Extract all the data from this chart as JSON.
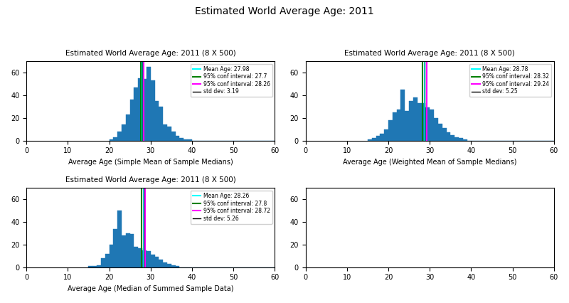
{
  "title": "Estimated World Average Age: 2011",
  "bar_color": "#1f77b4",
  "xlim": [
    0,
    60
  ],
  "ylim": [
    0,
    70
  ],
  "xticks": [
    0,
    10,
    20,
    30,
    40,
    50,
    60
  ],
  "plot1": {
    "title": "Estimated World Average Age: 2011 (8 X 500)",
    "xlabel": "Average Age (Simple Mean of Sample Medians)",
    "mean": 27.98,
    "ci_low": 27.7,
    "ci_high": 28.26,
    "std_dev": 3.19,
    "bin_start": 20,
    "bin_width": 1,
    "counts": [
      1,
      3,
      8,
      14,
      23,
      36,
      47,
      55,
      54,
      65,
      53,
      35,
      30,
      14,
      12,
      8,
      4,
      2,
      1,
      1,
      0,
      0,
      0,
      0,
      0,
      0,
      0,
      0,
      0,
      0,
      0,
      0,
      0,
      0,
      0,
      0,
      0,
      0,
      0,
      0
    ]
  },
  "plot2": {
    "title": "Estimated World Average Age: 2011 (8 X 500)",
    "xlabel": "Average Age (Weighted Mean of Sample Medians)",
    "mean": 28.78,
    "ci_low": 28.32,
    "ci_high": 29.24,
    "std_dev": 5.25,
    "bin_start": 15,
    "bin_width": 1,
    "counts": [
      1,
      2,
      4,
      6,
      10,
      18,
      25,
      27,
      45,
      26,
      35,
      38,
      33,
      33,
      29,
      27,
      20,
      15,
      11,
      7,
      5,
      3,
      2,
      1,
      0,
      0,
      0,
      0,
      0,
      0,
      0,
      0,
      0,
      0,
      0,
      0,
      0,
      0,
      0,
      0,
      0,
      0,
      0,
      0,
      0
    ]
  },
  "plot3": {
    "title": "Estimated World Average Age: 2011 (8 X 500)",
    "xlabel": "Average Age (Median of Summed Sample Data)",
    "mean": 28.26,
    "ci_low": 27.8,
    "ci_high": 28.72,
    "std_dev": 5.26,
    "bin_start": 15,
    "bin_width": 1,
    "counts": [
      1,
      1,
      2,
      8,
      12,
      20,
      34,
      50,
      28,
      30,
      29,
      18,
      17,
      15,
      14,
      11,
      9,
      7,
      4,
      3,
      2,
      1,
      0,
      0,
      0,
      0,
      0,
      0,
      0,
      0,
      0,
      0,
      0,
      0,
      0,
      0,
      0,
      0,
      0,
      0,
      0,
      0,
      0,
      0,
      0
    ]
  },
  "plot4": {
    "title": "",
    "xlabel": ""
  }
}
